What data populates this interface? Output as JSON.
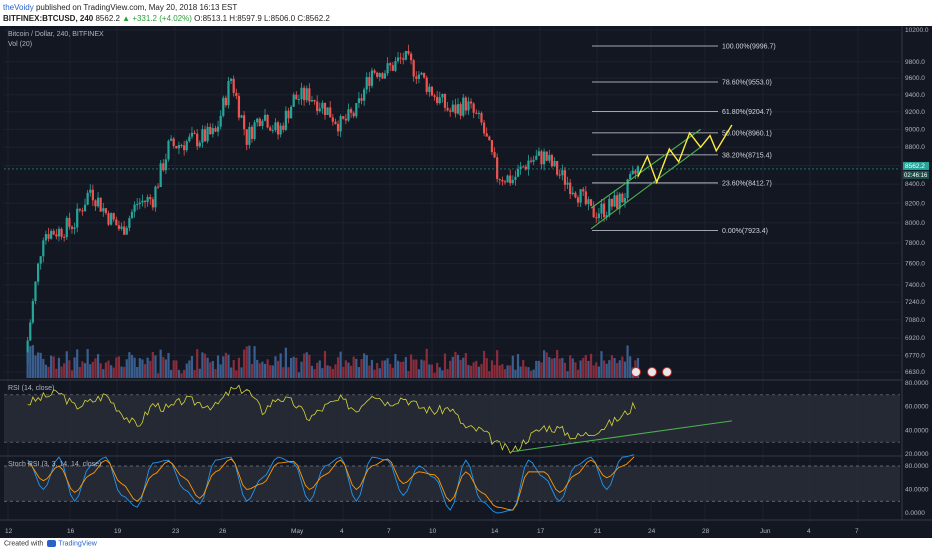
{
  "header": {
    "author": "theVoidy",
    "published_text": "published on TradingView.com, May 20, 2018 16:13 EST",
    "symbol_line": "BITFINEX:BTCUSD, 240",
    "last_price": "8562.2",
    "change": "▲ +331.2 (+4.02%)",
    "ohlc": "O:8513.1 H:8597.9 L:8506.0 C:8562.2"
  },
  "legend": {
    "title": "Bitcoin / Dollar, 240, BITFINEX",
    "vol": "Vol (20)",
    "rsi": "RSI (14, close)",
    "stoch": "Stoch RSI (3, 3, 14, 14, close)"
  },
  "footer": {
    "created_with": "Created with",
    "brand": "TradingView"
  },
  "colors": {
    "background": "#131722",
    "up_candle": "#26a69a",
    "down_candle": "#ef5350",
    "fib_line": "#d1d4dc",
    "channel": "#4caf50",
    "projection": "#ffeb3b",
    "rsi_line": "#d4d43a",
    "stoch_k": "#2196f3",
    "stoch_d": "#ff9800"
  },
  "chart_data": [
    {
      "type": "candlestick",
      "title": "Bitcoin / Dollar, 240, BITFINEX",
      "y_scale": "log",
      "ylim": [
        6630,
        10200
      ],
      "x_ticks": [
        "12",
        "16",
        "19",
        "23",
        "26",
        "May",
        "4",
        "7",
        "10",
        "14",
        "17",
        "21",
        "24",
        "28",
        "Jun",
        "4",
        "7"
      ],
      "y_ticks": [
        "10200.0",
        "9800.0",
        "9600.0",
        "9400.0",
        "9200.0",
        "9000.0",
        "8800.0",
        "8600.0",
        "8400.0",
        "8200.0",
        "8000.0",
        "7800.0",
        "7600.0",
        "7400.0",
        "7240.0",
        "7080.0",
        "6920.0",
        "6770.0",
        "6630.0"
      ],
      "price_flags": [
        "8562.2",
        "02:46:16"
      ],
      "close_path": [
        {
          "day": "Apr 11",
          "close": 6900
        },
        {
          "day": "Apr 12",
          "close": 7900
        },
        {
          "day": "Apr 13",
          "close": 7920
        },
        {
          "day": "Apr 14",
          "close": 8000
        },
        {
          "day": "Apr 15",
          "close": 8350
        },
        {
          "day": "Apr 16",
          "close": 8100
        },
        {
          "day": "Apr 17",
          "close": 7920
        },
        {
          "day": "Apr 18",
          "close": 8200
        },
        {
          "day": "Apr 19",
          "close": 8250
        },
        {
          "day": "Apr 20",
          "close": 8800
        },
        {
          "day": "Apr 21",
          "close": 8850
        },
        {
          "day": "Apr 22",
          "close": 8900
        },
        {
          "day": "Apr 23",
          "close": 8950
        },
        {
          "day": "Apr 24",
          "close": 9600
        },
        {
          "day": "Apr 25",
          "close": 8900
        },
        {
          "day": "Apr 26",
          "close": 9200
        },
        {
          "day": "Apr 27",
          "close": 8950
        },
        {
          "day": "Apr 28",
          "close": 9350
        },
        {
          "day": "Apr 29",
          "close": 9400
        },
        {
          "day": "Apr 30",
          "close": 9250
        },
        {
          "day": "May 1",
          "close": 9050
        },
        {
          "day": "May 2",
          "close": 9200
        },
        {
          "day": "May 3",
          "close": 9700
        },
        {
          "day": "May 4",
          "close": 9700
        },
        {
          "day": "May 5",
          "close": 9850
        },
        {
          "day": "May 6",
          "close": 9650
        },
        {
          "day": "May 7",
          "close": 9400
        },
        {
          "day": "May 8",
          "close": 9200
        },
        {
          "day": "May 9",
          "close": 9300
        },
        {
          "day": "May 10",
          "close": 9050
        },
        {
          "day": "May 11",
          "close": 8500
        },
        {
          "day": "May 12",
          "close": 8450
        },
        {
          "day": "May 13",
          "close": 8650
        },
        {
          "day": "May 14",
          "close": 8700
        },
        {
          "day": "May 15",
          "close": 8500
        },
        {
          "day": "May 16",
          "close": 8350
        },
        {
          "day": "May 17",
          "close": 8100
        },
        {
          "day": "May 18",
          "close": 8150
        },
        {
          "day": "May 19",
          "close": 8250
        },
        {
          "day": "May 20",
          "close": 8562.2
        }
      ],
      "fibonacci": [
        {
          "label": "100.00%(9996.7)",
          "price": 9996.7
        },
        {
          "label": "78.60%(9553.0)",
          "price": 9553.0
        },
        {
          "label": "61.80%(9204.7)",
          "price": 9204.7
        },
        {
          "label": "50.00%(8960.1)",
          "price": 8960.1
        },
        {
          "label": "38.20%(8715.4)",
          "price": 8715.4
        },
        {
          "label": "23.60%(8412.7)",
          "price": 8412.7
        },
        {
          "label": "0.00%(7923.4)",
          "price": 7923.4
        }
      ],
      "channel": {
        "lower": [
          {
            "day": "May 17",
            "price": 7940
          },
          {
            "day": "May 24",
            "price": 8800
          }
        ],
        "upper": [
          {
            "day": "May 17",
            "price": 8150
          },
          {
            "day": "May 24",
            "price": 9000
          }
        ]
      },
      "projection": [
        {
          "day": "May 20",
          "price": 8480
        },
        {
          "day": "May 20.6",
          "price": 8700
        },
        {
          "day": "May 21.2",
          "price": 8420
        },
        {
          "day": "May 22",
          "price": 8780
        },
        {
          "day": "May 22.6",
          "price": 8640
        },
        {
          "day": "May 23.3",
          "price": 8960
        },
        {
          "day": "May 24",
          "price": 8800
        },
        {
          "day": "May 24.6",
          "price": 8930
        },
        {
          "day": "May 25",
          "price": 8760
        },
        {
          "day": "May 26",
          "price": 9050
        }
      ]
    },
    {
      "type": "line",
      "title": "RSI (14, close)",
      "ylim": [
        20,
        80
      ],
      "y_ticks": [
        "80.0000",
        "60.0000",
        "40.0000",
        "20.0000"
      ],
      "bands": [
        70,
        30
      ],
      "values": [
        63,
        68,
        72,
        60,
        64,
        70,
        55,
        43,
        62,
        58,
        66,
        63,
        60,
        74,
        75,
        56,
        68,
        63,
        50,
        60,
        66,
        57,
        72,
        63,
        68,
        60,
        56,
        59,
        42,
        40,
        28,
        22,
        34,
        43,
        41,
        34,
        38,
        44,
        52,
        64
      ],
      "trendline": [
        {
          "day": "May 12",
          "rsi": 22
        },
        {
          "day": "May 26",
          "rsi": 48
        }
      ]
    },
    {
      "type": "line",
      "title": "Stoch RSI (3, 3, 14, 14, close)",
      "ylim": [
        0,
        80
      ],
      "y_ticks": [
        "80.0000",
        "40.0000",
        "0.0000"
      ],
      "bands": [
        80,
        20
      ],
      "series": [
        {
          "name": "K",
          "values": [
            90,
            40,
            95,
            20,
            80,
            95,
            30,
            10,
            85,
            90,
            40,
            15,
            90,
            95,
            20,
            60,
            95,
            85,
            20,
            80,
            95,
            20,
            95,
            90,
            30,
            80,
            60,
            5,
            90,
            20,
            0,
            5,
            90,
            60,
            20,
            80,
            95,
            40,
            95,
            100
          ]
        },
        {
          "name": "D",
          "values": [
            85,
            55,
            80,
            35,
            65,
            90,
            50,
            20,
            65,
            88,
            60,
            25,
            70,
            92,
            40,
            50,
            85,
            88,
            40,
            65,
            90,
            40,
            80,
            92,
            50,
            70,
            65,
            20,
            70,
            35,
            10,
            5,
            70,
            70,
            35,
            65,
            90,
            60,
            80,
            98
          ]
        }
      ]
    }
  ]
}
